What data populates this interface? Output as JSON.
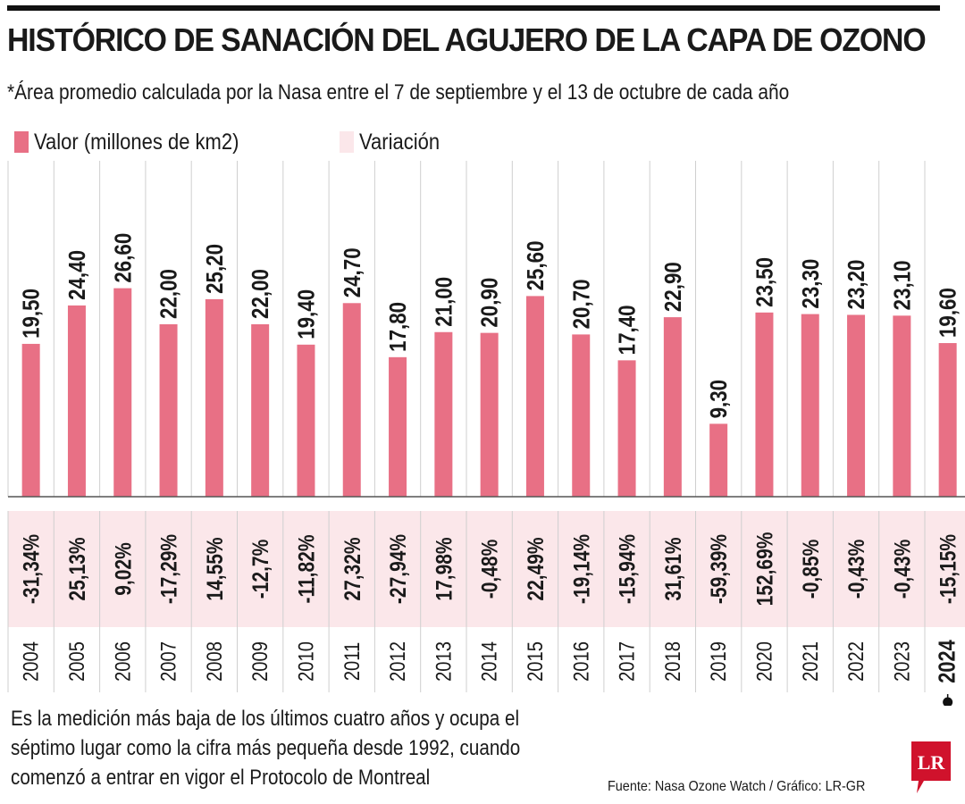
{
  "header": {
    "title": "HISTÓRICO DE SANACIÓN DEL AGUJERO DE LA CAPA DE OZONO",
    "subtitle": "*Área promedio calculada por la Nasa entre el 7 de septiembre y el 13 de octubre de cada año"
  },
  "legend": {
    "value_label": "Valor (millones de km2)",
    "variation_label": "Variación"
  },
  "colors": {
    "bar": "#e87085",
    "variation_band": "#fbe7ea",
    "text": "#1a1a1a"
  },
  "chart_data": {
    "type": "bar",
    "title": "HISTÓRICO DE SANACIÓN DEL AGUJERO DE LA CAPA DE OZONO",
    "ylabel": "Valor (millones de km2)",
    "ylim": [
      0,
      30
    ],
    "categories": [
      "2004",
      "2005",
      "2006",
      "2007",
      "2008",
      "2009",
      "2010",
      "2011",
      "2012",
      "2013",
      "2014",
      "2015",
      "2016",
      "2017",
      "2018",
      "2019",
      "2020",
      "2021",
      "2022",
      "2023",
      "2024"
    ],
    "values": [
      19.5,
      24.4,
      26.6,
      22.0,
      25.2,
      22.0,
      19.4,
      24.7,
      17.8,
      21.0,
      20.9,
      25.6,
      20.7,
      17.4,
      22.9,
      9.3,
      23.5,
      23.3,
      23.2,
      23.1,
      19.6
    ],
    "value_labels": [
      "19,50",
      "24,40",
      "26,60",
      "22,00",
      "25,20",
      "22,00",
      "19,40",
      "24,70",
      "17,80",
      "21,00",
      "20,90",
      "25,60",
      "20,70",
      "17,40",
      "22,90",
      "9,30",
      "23,50",
      "23,30",
      "23,20",
      "23,10",
      "19,60"
    ],
    "variation_labels": [
      "-31,34%",
      "25,13%",
      "9,02%",
      "-17,29%",
      "14,55%",
      "-12,7%",
      "-11,82%",
      "27,32%",
      "-27,94%",
      "17,98%",
      "-0,48%",
      "22,49%",
      "-19,14%",
      "-15,94%",
      "31,61%",
      "-59,39%",
      "152,69%",
      "-0,85%",
      "-0,43%",
      "-0,43%",
      "-15,15%"
    ],
    "highlight": "2024"
  },
  "annotation": {
    "lines": [
      "Es la medición más baja de los últimos cuatro años y ocupa el",
      "séptimo lugar como la cifra más pequeña desde 1992, cuando",
      "comenzó a entrar en vigor el Protocolo de Montreal"
    ]
  },
  "footer": {
    "source": "Fuente: Nasa Ozone Watch / Gráfico: LR-GR",
    "logo_text": "LR"
  }
}
